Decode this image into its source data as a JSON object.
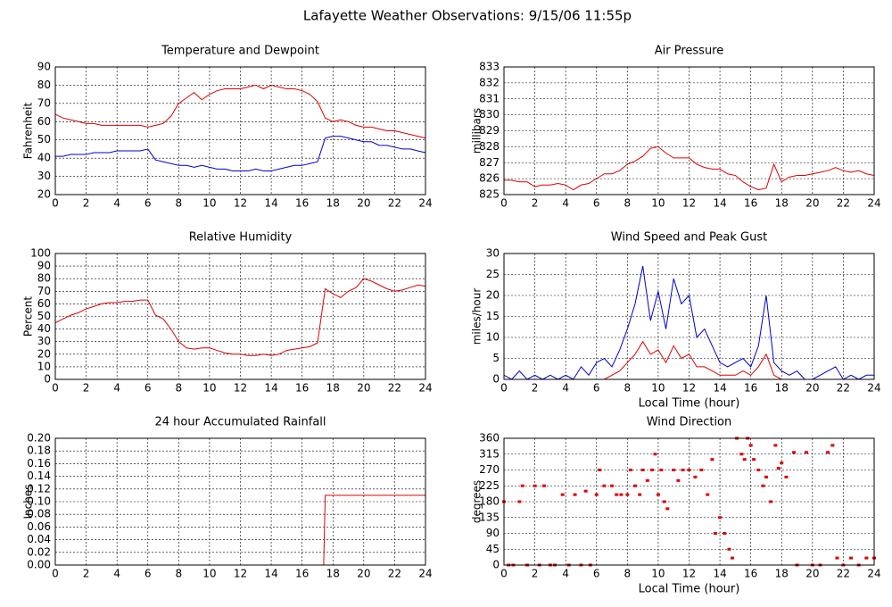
{
  "title": "Lafayette Weather Observations: 9/15/06 11:55p",
  "chart_data": [
    {
      "type": "line",
      "title": "Temperature and Dewpoint",
      "ylabel": "Fahrenheit",
      "x": [
        0,
        0.5,
        1,
        1.5,
        2,
        2.5,
        3,
        3.5,
        4,
        4.5,
        5,
        5.5,
        6,
        6.5,
        7,
        7.5,
        8,
        8.5,
        9,
        9.5,
        10,
        10.5,
        11,
        11.5,
        12,
        12.5,
        13,
        13.5,
        14,
        14.5,
        15,
        15.5,
        16,
        16.5,
        17,
        17.5,
        18,
        18.5,
        19,
        19.5,
        20,
        20.5,
        21,
        21.5,
        22,
        22.5,
        23,
        23.5,
        24
      ],
      "series": [
        {
          "color": "#dd0000",
          "values": [
            64,
            62,
            61,
            60,
            59,
            59,
            58,
            58,
            58,
            58,
            58,
            58,
            57,
            58,
            59,
            63,
            70,
            73,
            76,
            72,
            75,
            77,
            78,
            78,
            78,
            79,
            80,
            78,
            80,
            79,
            78,
            78,
            77,
            75,
            71,
            62,
            60,
            61,
            60,
            58,
            57,
            57,
            56,
            55,
            55,
            54,
            53,
            52,
            51
          ]
        },
        {
          "color": "#0000cc",
          "values": [
            41,
            41,
            42,
            42,
            42,
            43,
            43,
            43,
            44,
            44,
            44,
            44,
            45,
            39,
            38,
            37,
            36,
            36,
            35,
            36,
            35,
            34,
            34,
            33,
            33,
            33,
            34,
            33,
            33,
            34,
            35,
            36,
            36,
            37,
            38,
            51,
            52,
            52,
            51,
            50,
            49,
            49,
            47,
            47,
            46,
            45,
            45,
            44,
            43
          ]
        }
      ],
      "xlim": [
        0,
        24
      ],
      "xticks": [
        0,
        2,
        4,
        6,
        8,
        10,
        12,
        14,
        16,
        18,
        20,
        22,
        24
      ],
      "ylim": [
        20,
        90
      ],
      "yticks": [
        20,
        30,
        40,
        50,
        60,
        70,
        80,
        90
      ],
      "grid": true
    },
    {
      "type": "line",
      "title": "Air Pressure",
      "ylabel": "millibars",
      "x": [
        0,
        0.5,
        1,
        1.5,
        2,
        2.5,
        3,
        3.5,
        4,
        4.5,
        5,
        5.5,
        6,
        6.5,
        7,
        7.5,
        8,
        8.5,
        9,
        9.5,
        10,
        10.5,
        11,
        11.5,
        12,
        12.5,
        13,
        13.5,
        14,
        14.5,
        15,
        15.5,
        16,
        16.5,
        17,
        17.5,
        18,
        18.5,
        19,
        19.5,
        20,
        20.5,
        21,
        21.5,
        22,
        22.5,
        23,
        23.5,
        24
      ],
      "series": [
        {
          "color": "#dd0000",
          "values": [
            825.9,
            825.9,
            825.8,
            825.8,
            825.5,
            825.6,
            825.6,
            825.7,
            825.6,
            825.3,
            825.6,
            825.7,
            826.0,
            826.3,
            826.3,
            826.5,
            826.9,
            827.1,
            827.4,
            827.9,
            828.0,
            827.6,
            827.3,
            827.3,
            827.3,
            826.9,
            826.7,
            826.6,
            826.6,
            826.3,
            826.2,
            825.8,
            825.5,
            825.3,
            825.4,
            826.9,
            825.8,
            826.1,
            826.2,
            826.2,
            826.3,
            826.4,
            826.5,
            826.7,
            826.5,
            826.4,
            826.5,
            826.3,
            826.2
          ]
        }
      ],
      "xlim": [
        0,
        24
      ],
      "xticks": [
        0,
        2,
        4,
        6,
        8,
        10,
        12,
        14,
        16,
        18,
        20,
        22,
        24
      ],
      "ylim": [
        825,
        833
      ],
      "yticks": [
        825,
        826,
        827,
        828,
        829,
        830,
        831,
        832,
        833
      ],
      "grid": true
    },
    {
      "type": "line",
      "title": "Relative Humidity",
      "ylabel": "Percent",
      "x": [
        0,
        0.5,
        1,
        1.5,
        2,
        2.5,
        3,
        3.5,
        4,
        4.5,
        5,
        5.5,
        6,
        6.5,
        7,
        7.5,
        8,
        8.5,
        9,
        9.5,
        10,
        10.5,
        11,
        11.5,
        12,
        12.5,
        13,
        13.5,
        14,
        14.5,
        15,
        15.5,
        16,
        16.5,
        17,
        17.5,
        18,
        18.5,
        19,
        19.5,
        20,
        20.5,
        21,
        21.5,
        22,
        22.5,
        23,
        23.5,
        24
      ],
      "series": [
        {
          "color": "#dd0000",
          "values": [
            45,
            48,
            51,
            53,
            56,
            58,
            60,
            61,
            61,
            62,
            62,
            63,
            63,
            51,
            48,
            40,
            30,
            25,
            24,
            25,
            25,
            23,
            21,
            20,
            20,
            19,
            19,
            20,
            19,
            20,
            23,
            24,
            25,
            26,
            29,
            72,
            68,
            65,
            70,
            73,
            80,
            78,
            75,
            72,
            70,
            71,
            73,
            75,
            74
          ]
        }
      ],
      "xlim": [
        0,
        24
      ],
      "xticks": [
        0,
        2,
        4,
        6,
        8,
        10,
        12,
        14,
        16,
        18,
        20,
        22,
        24
      ],
      "ylim": [
        0,
        100
      ],
      "yticks": [
        0,
        10,
        20,
        30,
        40,
        50,
        60,
        70,
        80,
        90,
        100
      ],
      "grid": true
    },
    {
      "type": "line",
      "title": "Wind Speed and Peak Gust",
      "ylabel": "miles/hour",
      "xlabel": "Local Time (hour)",
      "x": [
        0,
        0.5,
        1,
        1.5,
        2,
        2.5,
        3,
        3.5,
        4,
        4.5,
        5,
        5.5,
        6,
        6.5,
        7,
        7.5,
        8,
        8.5,
        9,
        9.5,
        10,
        10.5,
        11,
        11.5,
        12,
        12.5,
        13,
        13.5,
        14,
        14.5,
        15,
        15.5,
        16,
        16.5,
        17,
        17.5,
        18,
        18.5,
        19,
        19.5,
        20,
        20.5,
        21,
        21.5,
        22,
        22.5,
        23,
        23.5,
        24
      ],
      "series": [
        {
          "color": "#0000cc",
          "values": [
            1,
            0,
            2,
            0,
            1,
            0,
            1,
            0,
            1,
            0,
            3,
            1,
            4,
            5,
            3,
            7,
            12,
            18,
            27,
            14,
            21,
            12,
            24,
            18,
            20,
            10,
            12,
            8,
            4,
            3,
            4,
            5,
            3,
            8,
            20,
            4,
            2,
            1,
            2,
            0,
            0,
            1,
            2,
            3,
            0,
            1,
            0,
            1,
            1
          ]
        },
        {
          "color": "#dd0000",
          "values": [
            0,
            0,
            0,
            0,
            0,
            0,
            0,
            0,
            0,
            0,
            0,
            0,
            0,
            0,
            1,
            2,
            4,
            6,
            9,
            6,
            7,
            4,
            8,
            5,
            6,
            3,
            3,
            2,
            1,
            1,
            1,
            2,
            1,
            3,
            6,
            1,
            0,
            0,
            0,
            0,
            0,
            0,
            0,
            0,
            0,
            0,
            0,
            0,
            0
          ]
        }
      ],
      "xlim": [
        0,
        24
      ],
      "xticks": [
        0,
        2,
        4,
        6,
        8,
        10,
        12,
        14,
        16,
        18,
        20,
        22,
        24
      ],
      "ylim": [
        0,
        30
      ],
      "yticks": [
        0,
        5,
        10,
        15,
        20,
        25,
        30
      ],
      "grid": true
    },
    {
      "type": "line",
      "title": "24 hour Accumulated Rainfall",
      "ylabel": "Inches",
      "x": [
        0,
        17.4,
        17.5,
        24
      ],
      "series": [
        {
          "color": "#dd0000",
          "values": [
            0,
            0,
            0.11,
            0.11
          ]
        }
      ],
      "xlim": [
        0,
        24
      ],
      "xticks": [
        0,
        2,
        4,
        6,
        8,
        10,
        12,
        14,
        16,
        18,
        20,
        22,
        24
      ],
      "ylim": [
        0,
        0.2
      ],
      "yticks": [
        {
          "value": 0,
          "label": "0.00"
        },
        {
          "value": 0.02,
          "label": "0.02"
        },
        {
          "value": 0.04,
          "label": "0.04"
        },
        {
          "value": 0.06,
          "label": "0.06"
        },
        {
          "value": 0.08,
          "label": "0.08"
        },
        {
          "value": 0.1,
          "label": "0.10"
        },
        {
          "value": 0.12,
          "label": "0.12"
        },
        {
          "value": 0.14,
          "label": "0.14"
        },
        {
          "value": 0.16,
          "label": "0.16"
        },
        {
          "value": 0.18,
          "label": "0.18"
        },
        {
          "value": 0.2,
          "label": "0.20"
        }
      ],
      "grid": true
    },
    {
      "type": "scatter",
      "title": "Wind Direction",
      "ylabel": "degrees",
      "xlabel": "Local Time (hour)",
      "color": "#dd0000",
      "x": [
        0,
        0.3,
        0.6,
        1,
        1.2,
        1.5,
        2,
        2.3,
        2.6,
        3,
        3.3,
        3.8,
        4.2,
        4.6,
        5,
        5.3,
        5.6,
        6,
        6.2,
        6.5,
        7,
        7.3,
        7.6,
        8,
        8.2,
        8.5,
        8.8,
        9,
        9.3,
        9.6,
        9.8,
        10,
        10.2,
        10.4,
        10.6,
        11,
        11.3,
        11.6,
        12,
        12.4,
        12.8,
        13.2,
        13.5,
        13.7,
        14,
        14.3,
        14.6,
        14.8,
        15.1,
        15.4,
        15.6,
        15.8,
        16,
        16.2,
        16.5,
        16.8,
        17,
        17.3,
        17.6,
        17.8,
        18,
        18.3,
        18.8,
        19,
        19.6,
        20,
        20.5,
        21,
        21.3,
        21.6,
        22,
        22.5,
        23,
        23.5,
        24
      ],
      "values": [
        180,
        0,
        0,
        180,
        225,
        0,
        225,
        0,
        225,
        0,
        0,
        200,
        0,
        200,
        0,
        210,
        0,
        200,
        270,
        225,
        225,
        200,
        200,
        200,
        270,
        225,
        200,
        270,
        240,
        270,
        315,
        200,
        270,
        180,
        160,
        270,
        240,
        270,
        270,
        250,
        270,
        200,
        300,
        90,
        135,
        90,
        45,
        20,
        360,
        315,
        300,
        360,
        340,
        300,
        270,
        225,
        250,
        180,
        340,
        275,
        290,
        250,
        320,
        0,
        320,
        0,
        0,
        320,
        340,
        20,
        0,
        20,
        0,
        20,
        20
      ],
      "xlim": [
        0,
        24
      ],
      "xticks": [
        0,
        2,
        4,
        6,
        8,
        10,
        12,
        14,
        16,
        18,
        20,
        22,
        24
      ],
      "ylim": [
        0,
        360
      ],
      "yticks": [
        0,
        45,
        90,
        135,
        180,
        225,
        270,
        315,
        360
      ],
      "grid": true
    }
  ]
}
